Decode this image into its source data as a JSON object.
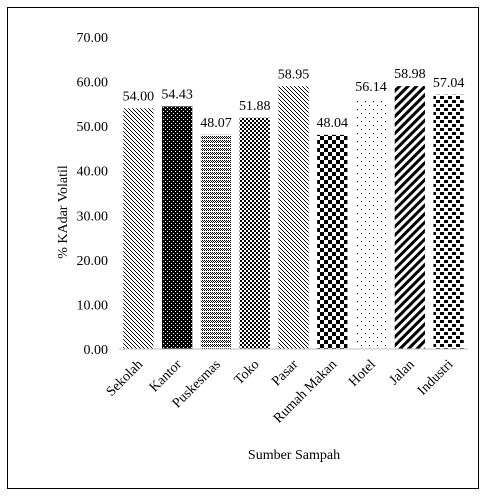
{
  "chart_data": {
    "type": "bar",
    "title": "",
    "xlabel": "Sumber Sampah",
    "ylabel": "% KAdar Volatil",
    "ylim": [
      0,
      70
    ],
    "ytick_step": 10,
    "ytick_labels": [
      "0.00",
      "10.00",
      "20.00",
      "30.00",
      "40.00",
      "50.00",
      "60.00",
      "70.00"
    ],
    "grid": false,
    "legend": "none",
    "categories": [
      "Sekolah",
      "Kantor",
      "Puskesmas",
      "Toko",
      "Pasar",
      "Rumah Makan",
      "Hotel",
      "Jalan",
      "Industri"
    ],
    "values": [
      54.0,
      54.43,
      48.07,
      51.88,
      58.95,
      48.04,
      56.14,
      58.98,
      57.04
    ],
    "value_labels": [
      "54.00",
      "54.43",
      "48.07",
      "51.88",
      "58.95",
      "48.04",
      "56.14",
      "58.98",
      "57.04"
    ],
    "fill_patterns": [
      "diagonal-dots",
      "dense-checker",
      "fine-checker",
      "small-checker",
      "diagonal-dots",
      "large-checker",
      "sparse-dots",
      "diagonal-stripes",
      "large-dots"
    ]
  }
}
